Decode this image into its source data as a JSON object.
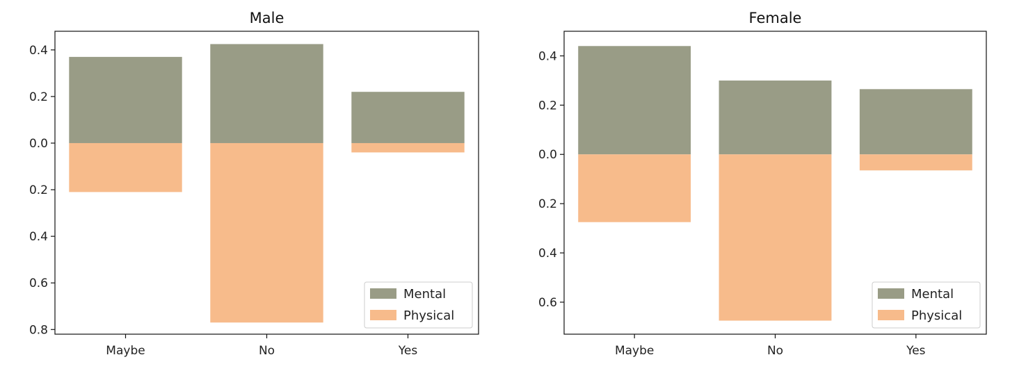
{
  "colors": {
    "mental": "#999c86",
    "physical": "#f7bb8b"
  },
  "chart_data": [
    {
      "type": "bar",
      "title": "Male",
      "categories": [
        "Maybe",
        "No",
        "Yes"
      ],
      "series": [
        {
          "name": "Mental",
          "values": [
            0.37,
            0.425,
            0.22
          ]
        },
        {
          "name": "Physical",
          "values": [
            -0.21,
            -0.77,
            -0.04
          ]
        }
      ],
      "ylim": [
        -0.82,
        0.48
      ],
      "yticks": [
        0.4,
        0.2,
        0.0,
        -0.2,
        -0.4,
        -0.6,
        -0.8
      ],
      "ytick_labels": [
        "0.4",
        "0.2",
        "0.0",
        "0.2",
        "0.4",
        "0.6",
        "0.8"
      ],
      "legend": "lower right",
      "grid": false
    },
    {
      "type": "bar",
      "title": "Female",
      "categories": [
        "Maybe",
        "No",
        "Yes"
      ],
      "series": [
        {
          "name": "Mental",
          "values": [
            0.44,
            0.3,
            0.265
          ]
        },
        {
          "name": "Physical",
          "values": [
            -0.275,
            -0.675,
            -0.065
          ]
        }
      ],
      "ylim": [
        -0.73,
        0.5
      ],
      "yticks": [
        0.4,
        0.2,
        0.0,
        -0.2,
        -0.4,
        -0.6
      ],
      "ytick_labels": [
        "0.4",
        "0.2",
        "0.0",
        "0.2",
        "0.4",
        "0.6"
      ],
      "legend": "lower right",
      "grid": false
    }
  ]
}
